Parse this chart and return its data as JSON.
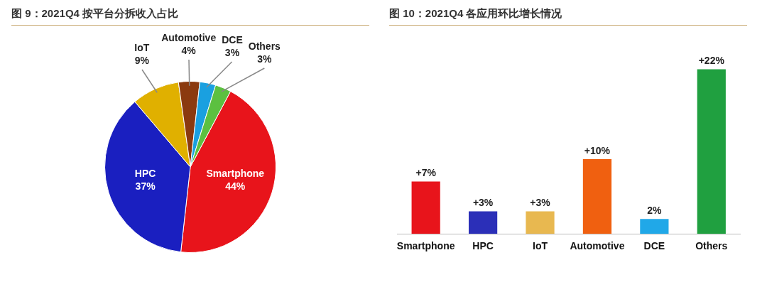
{
  "chart_data": [
    {
      "type": "pie",
      "title": "图 9：2021Q4 按平台分拆收入占比",
      "categories": [
        "Smartphone",
        "HPC",
        "IoT",
        "Automotive",
        "DCE",
        "Others"
      ],
      "values": [
        44,
        37,
        9,
        4,
        3,
        3
      ],
      "value_labels": [
        "44%",
        "37%",
        "9%",
        "4%",
        "3%",
        "3%"
      ],
      "colors": [
        "#e8141b",
        "#1a1fc0",
        "#e0b000",
        "#8b3a0f",
        "#1aa0e0",
        "#5cc040"
      ],
      "legend": false
    },
    {
      "type": "bar",
      "title": "图 10：2021Q4 各应用环比增长情况",
      "categories": [
        "Smartphone",
        "HPC",
        "IoT",
        "Automotive",
        "DCE",
        "Others"
      ],
      "values": [
        7,
        3,
        3,
        10,
        2,
        22
      ],
      "value_labels": [
        "+7%",
        "+3%",
        "+3%",
        "+10%",
        "2%",
        "+22%"
      ],
      "colors": [
        "#e8141b",
        "#2b2fb8",
        "#e8b850",
        "#f06010",
        "#20a8e8",
        "#20a040"
      ],
      "legend": false
    }
  ]
}
